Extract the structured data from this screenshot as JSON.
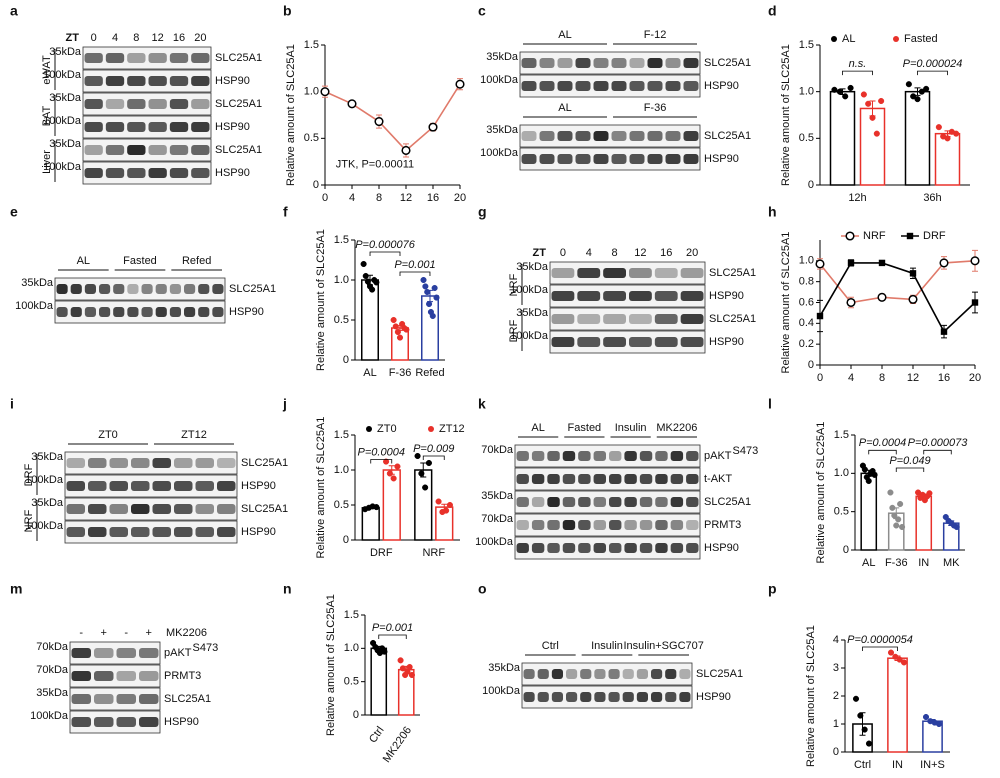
{
  "blots": [
    {
      "panel": "a",
      "header_lead": "ZT",
      "header": [
        "0",
        "4",
        "8",
        "12",
        "16",
        "20"
      ],
      "rows": [
        {
          "marker": "35kDa",
          "label": "SLC25A1"
        },
        {
          "marker": "100kDa",
          "label": "HSP90"
        },
        {
          "marker": "35kDa",
          "label": "SLC25A1"
        },
        {
          "marker": "100kDa",
          "label": "HSP90"
        },
        {
          "marker": "35kDa",
          "label": "SLC25A1"
        },
        {
          "marker": "100kDa",
          "label": "HSP90"
        }
      ],
      "sides": [
        "eWAT",
        "BAT",
        "Liver"
      ]
    },
    {
      "panel": "c",
      "groups": [
        "AL",
        "F-12"
      ],
      "rows": [
        {
          "marker": "35kDa",
          "label": "SLC25A1"
        },
        {
          "marker": "100kDa",
          "label": "HSP90"
        }
      ]
    },
    {
      "groups": [
        "AL",
        "F-36"
      ],
      "rows": [
        {
          "marker": "35kDa",
          "label": "SLC25A1"
        },
        {
          "marker": "100kDa",
          "label": "HSP90"
        }
      ]
    },
    {
      "panel": "e",
      "groups": [
        "AL",
        "Fasted",
        "Refed"
      ],
      "rows": [
        {
          "marker": "35kDa",
          "label": "SLC25A1"
        },
        {
          "marker": "100kDa",
          "label": "HSP90"
        }
      ]
    },
    {
      "panel": "g",
      "header_lead": "ZT",
      "header": [
        "0",
        "4",
        "8",
        "12",
        "16",
        "20"
      ],
      "rows": [
        {
          "marker": "35kDa",
          "label": "SLC25A1"
        },
        {
          "marker": "100kDa",
          "label": "HSP90"
        },
        {
          "marker": "35kDa",
          "label": "SLC25A1"
        },
        {
          "marker": "100kDa",
          "label": "HSP90"
        }
      ],
      "sides": [
        "NRF",
        "DRF"
      ]
    },
    {
      "panel": "i",
      "groups": [
        "ZT0",
        "ZT12"
      ],
      "rows": [
        {
          "marker": "35kDa",
          "label": "SLC25A1"
        },
        {
          "marker": "100kDa",
          "label": "HSP90"
        },
        {
          "marker": "35kDa",
          "label": "SLC25A1"
        },
        {
          "marker": "100kDa",
          "label": "HSP90"
        }
      ],
      "sides": [
        "DRF",
        "NRF"
      ]
    },
    {
      "panel": "k",
      "groups": [
        "AL",
        "Fasted",
        "Insulin",
        "MK2206"
      ],
      "rows": [
        {
          "marker": "70kDa",
          "label": "pAKT",
          "sup": "S473"
        },
        {
          "label": "t-AKT"
        },
        {
          "marker": "35kDa",
          "label": "SLC25A1"
        },
        {
          "marker": "70kDa",
          "label": "PRMT3"
        },
        {
          "marker": "100kDa",
          "label": "HSP90"
        }
      ]
    },
    {
      "panel": "m",
      "header": [
        "-",
        "+",
        "-",
        "+"
      ],
      "header_tail": "MK2206",
      "rows": [
        {
          "marker": "70kDa",
          "label": "pAKT",
          "sup": "S473"
        },
        {
          "marker": "70kDa",
          "label": "PRMT3"
        },
        {
          "marker": "35kDa",
          "label": "SLC25A1"
        },
        {
          "marker": "100kDa",
          "label": "HSP90"
        }
      ]
    },
    {
      "panel": "o",
      "groups": [
        "Ctrl",
        "Insulin",
        "Insulin+SGC707"
      ],
      "rows": [
        {
          "marker": "35kDa",
          "label": "SLC25A1"
        },
        {
          "marker": "100kDa",
          "label": "HSP90"
        }
      ]
    }
  ],
  "chart_data": [
    {
      "panel": "b",
      "type": "line",
      "ylabel": "Relative amount of SLC25A1",
      "x": [
        0,
        4,
        8,
        12,
        16,
        20
      ],
      "xlim": [
        0,
        20
      ],
      "xticks": [
        0,
        4,
        8,
        12,
        16,
        20
      ],
      "ylim": [
        0,
        1.5
      ],
      "yticks": [
        0,
        0.5,
        {
          "value": 1,
          "label": "1.0"
        },
        1.5
      ],
      "series": [
        {
          "color": "#e07a6a",
          "marker": "open-circle",
          "values": [
            1.0,
            0.87,
            0.68,
            0.37,
            0.62,
            1.08
          ],
          "errors": [
            0.06,
            0.03,
            0.07,
            0.07,
            0.04,
            0.06
          ]
        }
      ],
      "annotations": [
        "JTK, P=0.00011"
      ]
    },
    {
      "panel": "d",
      "type": "bar",
      "ylabel": "Relative amount of SLC25A1",
      "categories": [
        "12h",
        "36h"
      ],
      "ylim": [
        0,
        1.5
      ],
      "yticks": [
        0,
        0.5,
        {
          "value": 1,
          "label": "1.0"
        },
        1.5
      ],
      "series": [
        {
          "name": "AL",
          "color": "#000000",
          "values": [
            1.0,
            1.0
          ],
          "errors": [
            0.03,
            0.04
          ],
          "points": [
            [
              1.02,
              1.0,
              0.95,
              1.04
            ],
            [
              1.08,
              0.95,
              0.92,
              1.0,
              1.03
            ]
          ]
        },
        {
          "name": "Fasted",
          "color": "#e8312a",
          "values": [
            0.82,
            0.55
          ],
          "errors": [
            0.08,
            0.03
          ],
          "points": [
            [
              0.97,
              0.87,
              0.72,
              0.55,
              0.9
            ],
            [
              0.62,
              0.52,
              0.5,
              0.57,
              0.55
            ]
          ]
        }
      ],
      "annotations": [
        "n.s.",
        "P=0.000024"
      ]
    },
    {
      "panel": "f",
      "type": "bar",
      "ylabel": "Relative amount of SLC25A1",
      "categories": [
        "AL",
        "F-36",
        "Refed"
      ],
      "ylim": [
        0,
        1.5
      ],
      "yticks": [
        0,
        0.5,
        {
          "value": 1,
          "label": "1.0"
        },
        1.5
      ],
      "colors": [
        "#000000",
        "#e8312a",
        "#2a3fa0"
      ],
      "values": [
        1.0,
        0.4,
        0.8
      ],
      "errors": [
        0.06,
        0.03,
        0.07
      ],
      "points": [
        [
          1.2,
          1.05,
          0.98,
          0.92,
          0.88,
          1.0,
          0.97
        ],
        [
          0.5,
          0.42,
          0.35,
          0.28,
          0.45,
          0.4,
          0.38
        ],
        [
          1.0,
          0.92,
          0.85,
          0.7,
          0.6,
          0.55,
          0.9,
          0.78
        ]
      ],
      "annotations": [
        "P=0.000076",
        "P=0.001"
      ]
    },
    {
      "panel": "h",
      "type": "line",
      "ylabel": "Relative amount of SLC25A1",
      "x": [
        0,
        4,
        8,
        12,
        16,
        20
      ],
      "xlim": [
        0,
        20
      ],
      "xticks": [
        0,
        4,
        8,
        12,
        16,
        20
      ],
      "ylim": [
        0,
        1.2
      ],
      "yticks": [
        0,
        0.2,
        0.4,
        0.6,
        0.8,
        {
          "value": 1,
          "label": "1.0"
        }
      ],
      "series": [
        {
          "name": "NRF",
          "color": "#e07a6a",
          "marker": "open-circle",
          "values": [
            0.97,
            0.6,
            0.65,
            0.63,
            0.98,
            1.0
          ],
          "errors": [
            0.05,
            0.05,
            0.03,
            0.04,
            0.06,
            0.1
          ]
        },
        {
          "name": "DRF",
          "color": "#000000",
          "marker": "square",
          "values": [
            0.47,
            0.98,
            0.98,
            0.88,
            0.32,
            0.6
          ],
          "errors": [
            0.15,
            0.03,
            0.02,
            0.05,
            0.06,
            0.1
          ]
        }
      ]
    },
    {
      "panel": "j",
      "type": "bar",
      "ylabel": "Relative amount of SLC25A1",
      "categories": [
        "DRF",
        "NRF"
      ],
      "ylim": [
        0,
        1.5
      ],
      "yticks": [
        0,
        0.5,
        {
          "value": 1,
          "label": "1.0"
        },
        1.5
      ],
      "series": [
        {
          "name": "ZT0",
          "color": "#000000",
          "values": [
            0.46,
            1.0
          ],
          "errors": [
            0.01,
            0.1
          ],
          "points": [
            [
              0.44,
              0.46,
              0.48,
              0.47
            ],
            [
              1.2,
              0.95,
              0.75,
              1.1
            ]
          ]
        },
        {
          "name": "ZT12",
          "color": "#e8312a",
          "values": [
            1.0,
            0.47
          ],
          "errors": [
            0.06,
            0.04
          ],
          "points": [
            [
              1.12,
              0.95,
              0.88,
              1.05
            ],
            [
              0.55,
              0.4,
              0.42,
              0.5
            ]
          ]
        }
      ],
      "annotations": [
        "P=0.0004",
        "P=0.009"
      ]
    },
    {
      "panel": "l",
      "type": "bar",
      "ylabel": "Relative amount of SLC25A1",
      "categories": [
        "AL",
        "F-36",
        "IN",
        "MK"
      ],
      "ylim": [
        0,
        1.5
      ],
      "yticks": [
        0,
        0.5,
        {
          "value": 1,
          "label": "1.0"
        },
        1.5
      ],
      "colors": [
        "#000000",
        "#8c8c8c",
        "#e8312a",
        "#2a3fa0"
      ],
      "values": [
        1.0,
        0.48,
        0.7,
        0.35
      ],
      "errors": [
        0.04,
        0.07,
        0.03,
        0.03
      ],
      "points": [
        [
          1.1,
          1.05,
          0.95,
          0.9,
          1.0,
          1.03,
          0.98
        ],
        [
          0.75,
          0.55,
          0.45,
          0.32,
          0.4,
          0.6,
          0.3
        ],
        [
          0.75,
          0.68,
          0.72,
          0.65,
          0.7,
          0.74
        ],
        [
          0.43,
          0.38,
          0.35,
          0.32,
          0.3
        ]
      ],
      "annotations": [
        "P=0.0004",
        "P=0.049",
        "P=0.000073"
      ]
    },
    {
      "panel": "n",
      "type": "bar",
      "ylabel": "Relative amount of SLC25A1",
      "categories": [
        "Ctrl",
        "MK2206"
      ],
      "ylim": [
        0,
        1.5
      ],
      "yticks": [
        0,
        0.5,
        {
          "value": 1,
          "label": "1.0"
        },
        1.5
      ],
      "colors": [
        "#000000",
        "#e8312a"
      ],
      "values": [
        1.0,
        0.68
      ],
      "errors": [
        0.03,
        0.05
      ],
      "points": [
        [
          1.08,
          1.02,
          0.97,
          0.93,
          1.0,
          0.95
        ],
        [
          0.82,
          0.7,
          0.6,
          0.65,
          0.72,
          0.6
        ]
      ],
      "annotations": [
        "P=0.001"
      ]
    },
    {
      "panel": "p",
      "type": "bar",
      "ylabel": "Relative amount of SLC25A1",
      "categories": [
        "Ctrl",
        "IN",
        "IN+S"
      ],
      "ylim": [
        0,
        4
      ],
      "yticks": [
        0,
        1,
        2,
        3,
        4
      ],
      "colors": [
        "#000000",
        "#e8312a",
        "#2a3fa0"
      ],
      "values": [
        1.0,
        3.35,
        1.1
      ],
      "errors": [
        0.4,
        0.08,
        0.06
      ],
      "points": [
        [
          1.9,
          1.3,
          0.8,
          0.3
        ],
        [
          3.55,
          3.4,
          3.3,
          3.2
        ],
        [
          1.25,
          1.1,
          1.05,
          1.0
        ]
      ],
      "annotations": [
        "P=0.0000054"
      ]
    }
  ]
}
